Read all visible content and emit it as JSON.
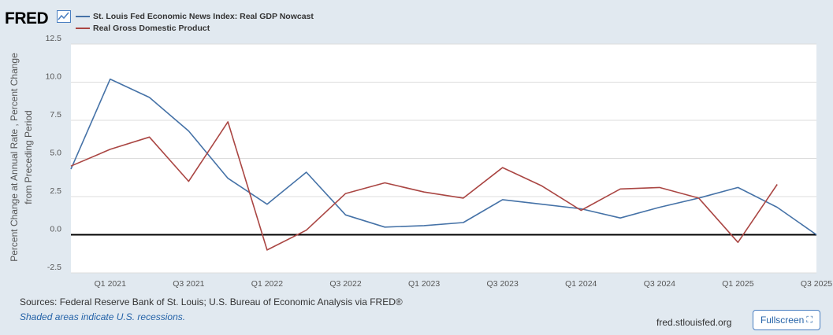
{
  "header": {
    "logo_text": "FRED",
    "logo_icon": "line-chart-icon"
  },
  "chart_data": {
    "type": "line",
    "categories": [
      "Q4 2020",
      "Q1 2021",
      "Q2 2021",
      "Q3 2021",
      "Q4 2021",
      "Q1 2022",
      "Q2 2022",
      "Q3 2022",
      "Q4 2022",
      "Q1 2023",
      "Q2 2023",
      "Q3 2023",
      "Q4 2023",
      "Q1 2024",
      "Q2 2024",
      "Q3 2024",
      "Q4 2024",
      "Q1 2025",
      "Q2 2025",
      "Q3 2025"
    ],
    "series": [
      {
        "name": "St. Louis Fed Economic News Index: Real GDP Nowcast",
        "color": "#4572a7",
        "values": [
          4.3,
          10.2,
          9.0,
          6.8,
          3.7,
          2.0,
          4.1,
          1.3,
          0.5,
          0.6,
          0.8,
          2.3,
          2.0,
          1.7,
          1.1,
          1.8,
          2.4,
          3.1,
          1.8,
          0.0
        ]
      },
      {
        "name": "Real Gross Domestic Product",
        "color": "#aa4643",
        "values": [
          4.5,
          5.6,
          6.4,
          3.5,
          7.4,
          -1.0,
          0.3,
          2.7,
          3.4,
          2.8,
          2.4,
          4.4,
          3.2,
          1.6,
          3.0,
          3.1,
          2.4,
          -0.5,
          3.3,
          null
        ]
      }
    ],
    "title": "",
    "xlabel": "",
    "ylabel": "Percent Change at Annual Rate , Percent Change from Preceding Period",
    "ylabel_lines": [
      "Percent Change at Annual Rate , Percent Change",
      "from Preceding Period"
    ],
    "ylim": [
      -2.5,
      12.5
    ],
    "yticks": [
      "12.5",
      "10.0",
      "7.5",
      "5.0",
      "2.5",
      "0.0",
      "-2.5"
    ],
    "ytick_values": [
      12.5,
      10.0,
      7.5,
      5.0,
      2.5,
      0.0,
      -2.5
    ],
    "xtick_labels": [
      {
        "label": "Q1 2021",
        "index": 1
      },
      {
        "label": "Q3 2021",
        "index": 3
      },
      {
        "label": "Q1 2022",
        "index": 5
      },
      {
        "label": "Q3 2022",
        "index": 7
      },
      {
        "label": "Q1 2023",
        "index": 9
      },
      {
        "label": "Q3 2023",
        "index": 11
      },
      {
        "label": "Q1 2024",
        "index": 13
      },
      {
        "label": "Q3 2024",
        "index": 15
      },
      {
        "label": "Q1 2025",
        "index": 17
      },
      {
        "label": "Q3 2025",
        "index": 19
      }
    ],
    "grid": true,
    "legend": "top-left"
  },
  "footer": {
    "sources": "Sources: Federal Reserve Bank of St. Louis; U.S. Bureau of Economic Analysis via FRED®",
    "shaded_note": "Shaded areas indicate U.S. recessions.",
    "site": "fred.stlouisfed.org",
    "fullscreen_label": "Fullscreen",
    "fullscreen_icon": "expand-icon"
  }
}
